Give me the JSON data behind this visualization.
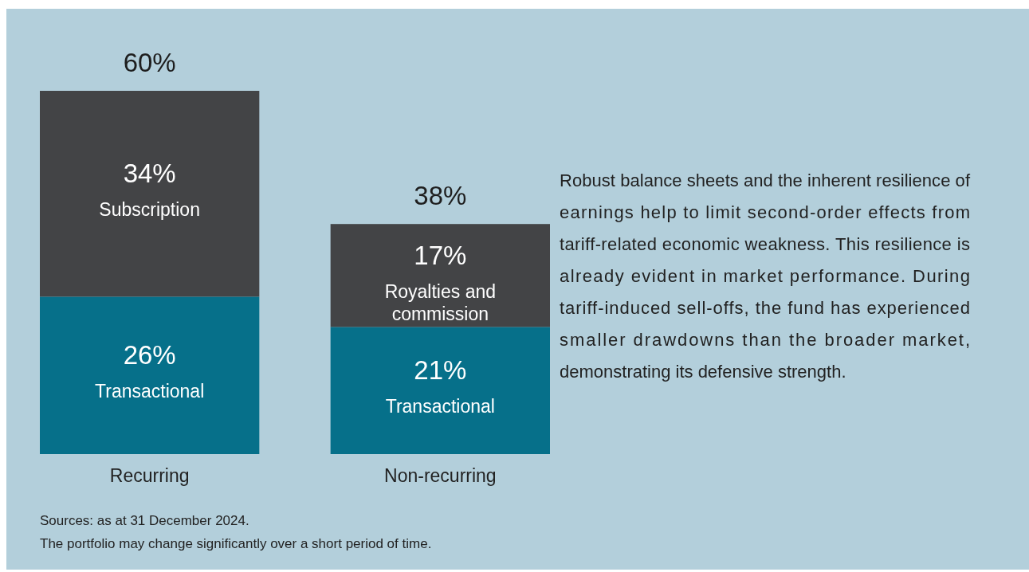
{
  "chart_data": {
    "type": "bar",
    "stacked": true,
    "categories": [
      "Recurring",
      "Non-recurring"
    ],
    "series": [
      {
        "color": "#06708a",
        "values": [
          26,
          21
        ],
        "value_labels": [
          "26%",
          "21%"
        ]
      },
      {
        "color": "#434446",
        "values": [
          34,
          17
        ],
        "value_labels": [
          "34%",
          "17%"
        ]
      }
    ],
    "totals": [
      "60%",
      "38%"
    ],
    "annotations": [
      "Robust balance sheets and the inherent resilience of earnings help to limit second-order effects from tariff-related economic weakness. This resilience is already evident in market performance. During tariff-induced sell-offs, the fund has experienced smaller drawdowns than the broader market, demonstrating its defensive strength.",
      "Transactional",
      "Transactional",
      "Subscription",
      "Royalties and commission",
      "Sources: as at 31 December 2024.",
      "The portfolio may change significantly over a short period of time."
    ]
  }
}
